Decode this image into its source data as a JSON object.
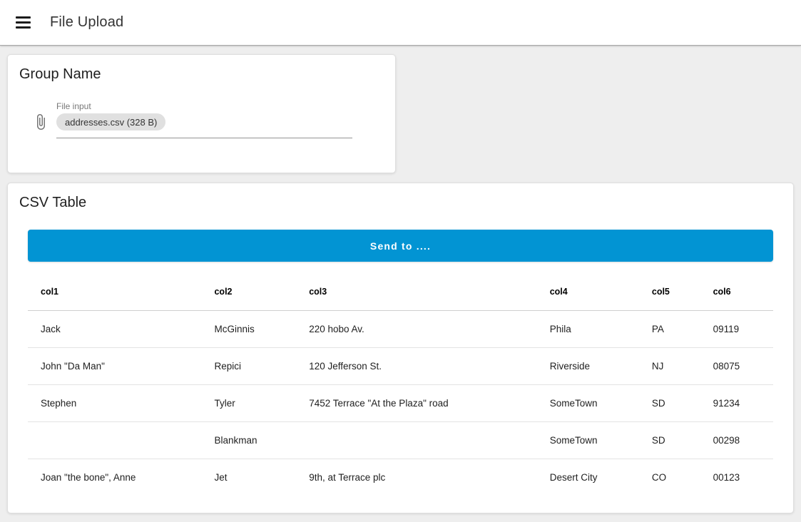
{
  "app_bar": {
    "title": "File Upload"
  },
  "upload_card": {
    "title": "Group Name",
    "file_input": {
      "label": "File input",
      "chip": "addresses.csv (328 B)"
    }
  },
  "table_card": {
    "title": "CSV Table",
    "send_button_label": "Send to ....",
    "table": {
      "headers": [
        "col1",
        "col2",
        "col3",
        "col4",
        "col5",
        "col6"
      ],
      "rows": [
        [
          "Jack",
          "McGinnis",
          "220 hobo Av.",
          "Phila",
          "PA",
          "09119"
        ],
        [
          "John \"Da Man\"",
          "Repici",
          "120 Jefferson St.",
          "Riverside",
          "NJ",
          "08075"
        ],
        [
          "Stephen",
          "Tyler",
          "7452 Terrace \"At the Plaza\" road",
          "SomeTown",
          "SD",
          "91234"
        ],
        [
          "",
          "Blankman",
          "",
          "SomeTown",
          "SD",
          "00298"
        ],
        [
          "Joan \"the bone\", Anne",
          "Jet",
          "9th, at Terrace plc",
          "Desert City",
          "CO",
          "00123"
        ]
      ]
    }
  },
  "colors": {
    "accent_blue": "#0294d3",
    "page_background": "#eeeeee",
    "chip_background": "#e0e0e0",
    "divider": "#e3e3e3"
  }
}
